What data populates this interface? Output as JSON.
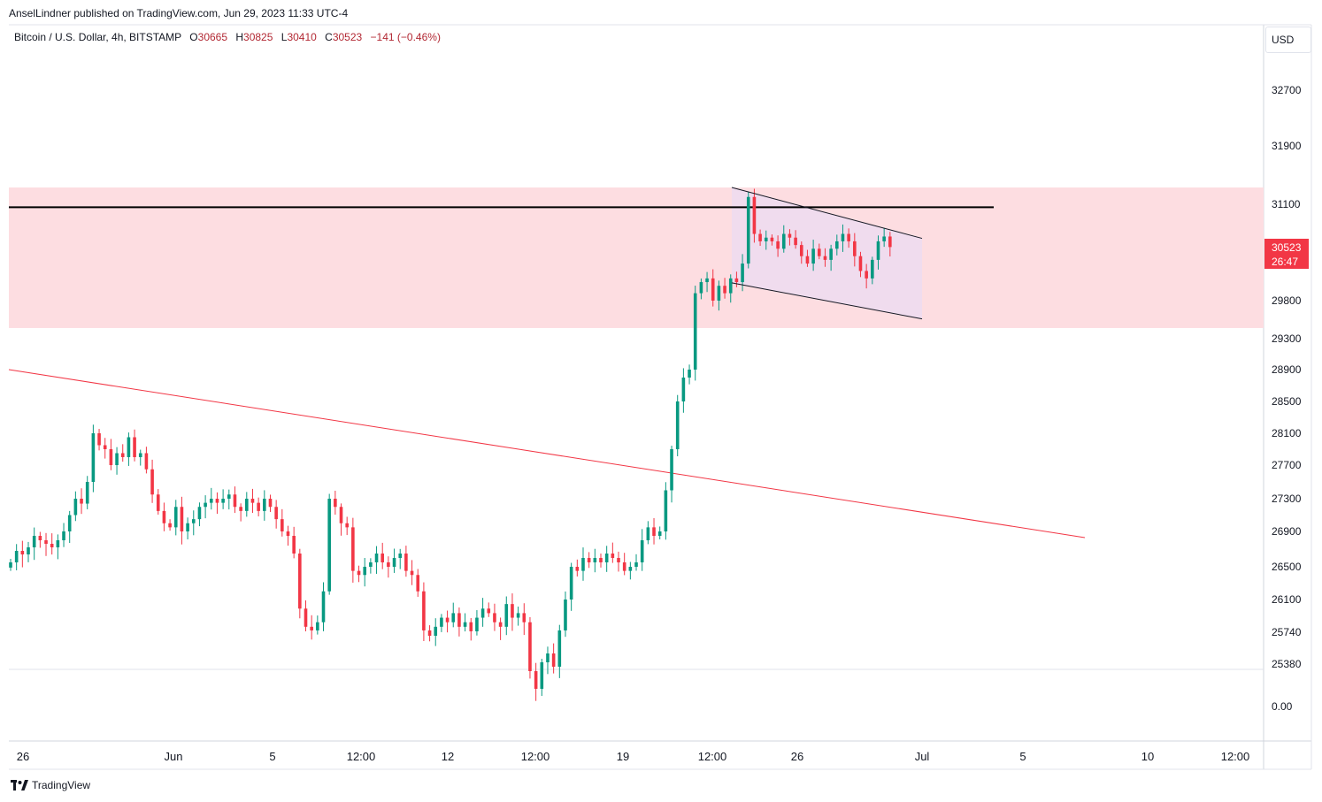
{
  "header": {
    "publisher": "AnselLindner published on TradingView.com, Jun 29, 2023 11:33 UTC-4"
  },
  "legend": {
    "symbol": "Bitcoin / U.S. Dollar, 4h, BITSTAMP",
    "open_label": "O",
    "open": "30665",
    "high_label": "H",
    "high": "30825",
    "low_label": "L",
    "low": "30410",
    "close_label": "C",
    "close": "30523",
    "change": "−141 (−0.46%)"
  },
  "price_axis": {
    "currency": "USD",
    "last_price": "30523",
    "countdown": "26:47"
  },
  "footer": {
    "brand": "TradingView"
  },
  "colors": {
    "up": "#089981",
    "down": "#f23645",
    "zone": "#fddde1",
    "channel": "#eedcef",
    "trendline": "#f23645",
    "level": "#000000"
  },
  "chart_data": {
    "type": "candlestick",
    "interval": "4h",
    "y_ticks": [
      {
        "label": "32700"
      },
      {
        "label": "31900"
      },
      {
        "label": "31100"
      },
      {
        "label": "29800"
      },
      {
        "label": "29300"
      },
      {
        "label": "28900"
      },
      {
        "label": "28500"
      },
      {
        "label": "28100"
      },
      {
        "label": "27700"
      },
      {
        "label": "27300"
      },
      {
        "label": "26900"
      },
      {
        "label": "26500"
      },
      {
        "label": "26100"
      },
      {
        "label": "25740"
      },
      {
        "label": "25380"
      },
      {
        "label": "0.00"
      }
    ],
    "x_ticks": [
      "26",
      "Jun",
      "5",
      "12:00",
      "12",
      "12:00",
      "19",
      "12:00",
      "26",
      "Jul",
      "5",
      "10",
      "12:00"
    ],
    "horizontal_level": 31060,
    "resistance_zone": [
      29440,
      31330
    ],
    "channel": {
      "upper": [
        31330,
        30640
      ],
      "lower": [
        30040,
        29560
      ]
    },
    "trendline": [
      28900,
      26830
    ],
    "last_close": 30523,
    "candles_close": [
      26550,
      26680,
      26640,
      26720,
      26850,
      26800,
      26760,
      26720,
      26800,
      26900,
      27100,
      27300,
      27240,
      27500,
      28100,
      27950,
      27900,
      27700,
      27850,
      27800,
      28050,
      27800,
      27850,
      27650,
      27350,
      27150,
      27000,
      26950,
      27200,
      26900,
      27000,
      27050,
      27200,
      27250,
      27300,
      27250,
      27300,
      27350,
      27200,
      27150,
      27300,
      27250,
      27150,
      27300,
      27200,
      27050,
      26900,
      26850,
      26650,
      26000,
      25800,
      25760,
      25850,
      26200,
      27300,
      27200,
      27000,
      26950,
      26450,
      26400,
      26500,
      26550,
      26650,
      26550,
      26500,
      26600,
      26650,
      26450,
      26400,
      26200,
      25760,
      25700,
      25800,
      25900,
      25850,
      25950,
      25800,
      25850,
      25750,
      25900,
      26000,
      25950,
      25850,
      25800,
      26050,
      25900,
      25950,
      25850,
      25300,
      25100,
      25400,
      25500,
      25350,
      25760,
      26100,
      26500,
      26450,
      26600,
      26550,
      26600,
      26550,
      26650,
      26600,
      26550,
      26450,
      26500,
      26550,
      26800,
      26950,
      26850,
      26900,
      27400,
      27900,
      28500,
      28800,
      28900,
      29900,
      30050,
      30100,
      29800,
      30000,
      29900,
      30100,
      30050,
      30300,
      31200,
      30700,
      30600,
      30650,
      30600,
      30500,
      30700,
      30650,
      30550,
      30400,
      30300,
      30500,
      30400,
      30350,
      30500,
      30600,
      30700,
      30600,
      30400,
      30200,
      30100,
      30350,
      30600,
      30665,
      30523
    ]
  }
}
